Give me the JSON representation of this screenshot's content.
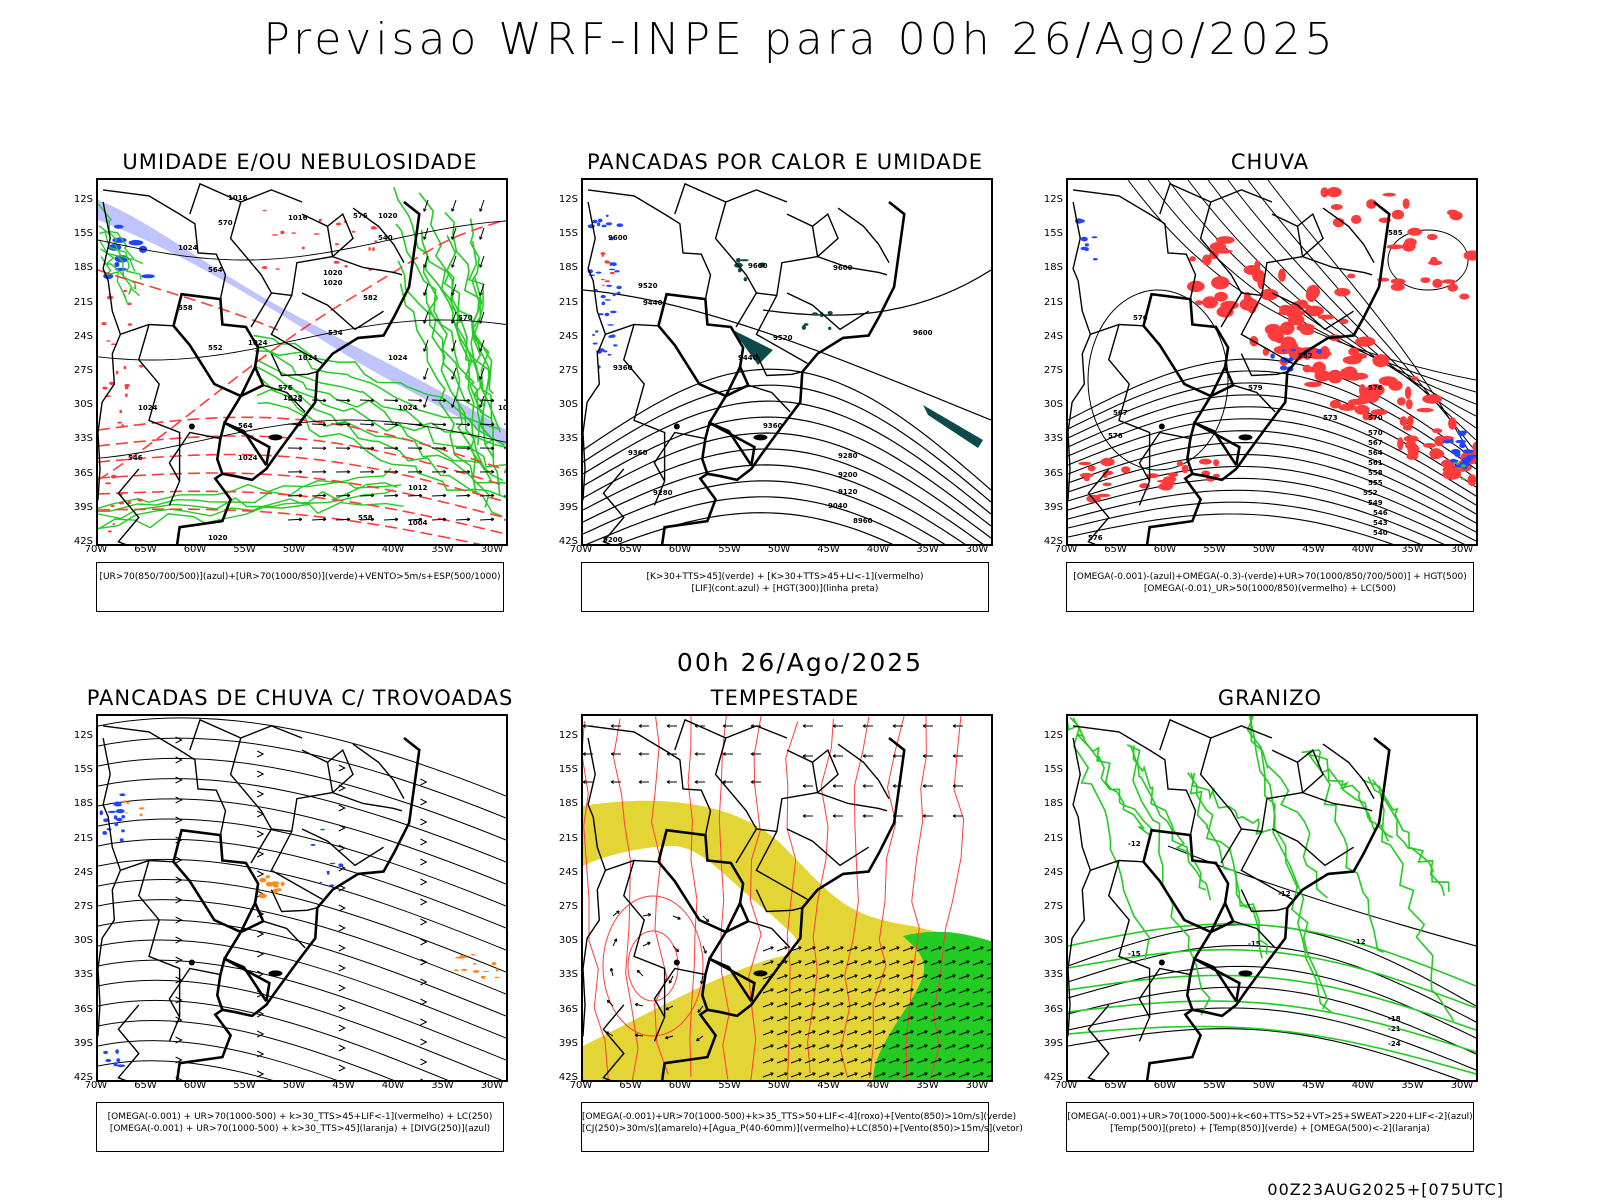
{
  "page": {
    "title": "Previsao WRF-INPE  para 00h 26/Ago/2025",
    "middle_title": "00h 26/Ago/2025",
    "footer": "00Z23AUG2025+[075UTC]"
  },
  "axes": {
    "lat_labels": [
      "12S",
      "15S",
      "18S",
      "21S",
      "24S",
      "27S",
      "30S",
      "33S",
      "36S",
      "39S",
      "42S"
    ],
    "lon_labels": [
      "70W",
      "65W",
      "60W",
      "55W",
      "50W",
      "45W",
      "40W",
      "35W",
      "30W"
    ]
  },
  "colors": {
    "green": "#22cc22",
    "red": "#ff3b3b",
    "blue": "#2244ff",
    "lavender": "#aab0ff",
    "orange": "#ff8a1e",
    "yellow": "#e0d020",
    "dark_teal": "#0f4a4a",
    "black": "#000000"
  },
  "panels": [
    {
      "title": "UMIDADE E/OU NEBULOSIDADE",
      "legend": [
        "[UR>70(850/700/500)](azul)+[UR>70(1000/850)](verde)+VENTO>5m/s+ESP(500/1000)"
      ],
      "contour_labels": [
        "1016",
        "1016",
        "1020",
        "1024",
        "1020",
        "1020",
        "1024",
        "1024",
        "1024",
        "1024",
        "1028",
        "1024",
        "1024",
        "1020",
        "1012",
        "1004",
        "1020",
        "570",
        "576",
        "564",
        "558",
        "552",
        "546",
        "540",
        "534",
        "582",
        "576",
        "570",
        "564",
        "558"
      ]
    },
    {
      "title": "PANCADAS POR CALOR E UMIDADE",
      "legend": [
        "[K>30+TTS>45](verde) + [K>30+TTS>45+LI<-1](vermelho)",
        "[LIF](cont.azul) + [HGT(300)](linha preta)"
      ],
      "contour_labels": [
        "9600",
        "9600",
        "9600",
        "9520",
        "9520",
        "9440",
        "9440",
        "9360",
        "9600",
        "9360",
        "9360",
        "9280",
        "9280",
        "9200",
        "9120",
        "9040",
        "8960",
        "9200"
      ]
    },
    {
      "title": "CHUVA",
      "legend": [
        "[OMEGA(-0.001)-(azul)+OMEGA(-0.3)-(verde)+UR>70(1000/850/700/500)] + HGT(500)",
        "[OMEGA(-0.01)_UR>50(1000/850)(vermelho) + LC(500)"
      ],
      "contour_labels": [
        "585",
        "576",
        "582",
        "579",
        "576",
        "573",
        "570",
        "567",
        "564",
        "561",
        "558",
        "555",
        "552",
        "549",
        "546",
        "543",
        "540",
        "576",
        "576",
        "570",
        "567"
      ]
    },
    {
      "title": "PANCADAS DE CHUVA C/ TROVOADAS",
      "legend": [
        "[OMEGA(-0.001) + UR>70(1000-500) + k>30_TTS>45+LIF<-1](vermelho) + LC(250)",
        "[OMEGA(-0.001) + UR>70(1000-500) + k>30_TTS>45](laranja) + [DIVG(250)](azul)"
      ],
      "contour_labels": []
    },
    {
      "title": "TEMPESTADE",
      "legend": [
        "[OMEGA(-0.001)+UR>70(1000-500)+k>35_TTS>50+LIF<-4](roxo)+[Vento(850)>10m/s](verde)",
        "[CJ(250)>30m/s](amarelo)+[Agua_P(40-60mm)](vermelho)+LC(850)+[Vento(850)>15m/s](vetor)"
      ],
      "contour_labels": []
    },
    {
      "title": "GRANIZO",
      "legend": [
        "[OMEGA(-0.001)+UR>70(1000-500)+k<60+TTS>52+VT>25+SWEAT>220+LIF<-2](azul)",
        "[Temp(500)](preto) + [Temp(850)](verde) + [OMEGA(500)<-2](laranja)"
      ],
      "contour_labels": [
        "-12",
        "-12",
        "-15",
        "-15",
        "-12",
        "-18",
        "-21",
        "-24"
      ]
    }
  ]
}
